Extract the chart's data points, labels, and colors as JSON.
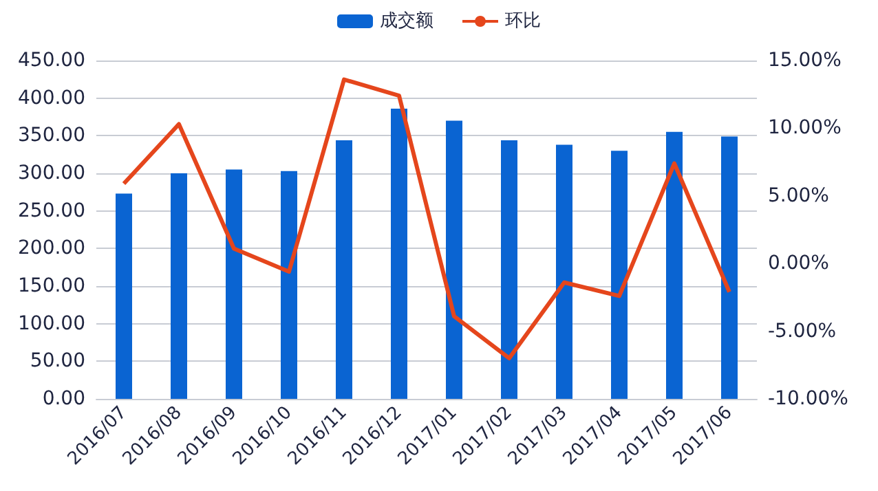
{
  "chart_data": {
    "type": "bar",
    "categories": [
      "2016/07",
      "2016/08",
      "2016/09",
      "2016/10",
      "2016/11",
      "2016/12",
      "2017/01",
      "2017/02",
      "2017/03",
      "2017/04",
      "2017/05",
      "2017/06"
    ],
    "series": [
      {
        "name": "成交额",
        "type": "bar",
        "color": "#0a64d2",
        "values": [
          273,
          300,
          305,
          303,
          344,
          386,
          370,
          344,
          338,
          330,
          355,
          349
        ]
      },
      {
        "name": "环比",
        "type": "line",
        "axis": "y2",
        "color": "#e5461c",
        "values": [
          5.9,
          10.3,
          1.1,
          -0.6,
          13.6,
          12.4,
          -3.9,
          -7.0,
          -1.4,
          -2.4,
          7.4,
          -2.1
        ]
      }
    ],
    "ylim": [
      0,
      450
    ],
    "yticks": [
      {
        "value": 0,
        "label": "0.00"
      },
      {
        "value": 50,
        "label": "50.00"
      },
      {
        "value": 100,
        "label": "100.00"
      },
      {
        "value": 150,
        "label": "150.00"
      },
      {
        "value": 200,
        "label": "200.00"
      },
      {
        "value": 250,
        "label": "250.00"
      },
      {
        "value": 300,
        "label": "300.00"
      },
      {
        "value": 350,
        "label": "350.00"
      },
      {
        "value": 400,
        "label": "400.00"
      },
      {
        "value": 450,
        "label": "450.00"
      }
    ],
    "y2lim": [
      -10,
      15
    ],
    "y2ticks": [
      {
        "value": -10,
        "label": "-10.00%"
      },
      {
        "value": -5,
        "label": "-5.00%"
      },
      {
        "value": 0,
        "label": "0.00%"
      },
      {
        "value": 5,
        "label": "5.00%"
      },
      {
        "value": 10,
        "label": "10.00%"
      },
      {
        "value": 15,
        "label": "15.00%"
      }
    ],
    "grid": "y",
    "legend": "top",
    "marker": "none",
    "line_style": "solid"
  }
}
